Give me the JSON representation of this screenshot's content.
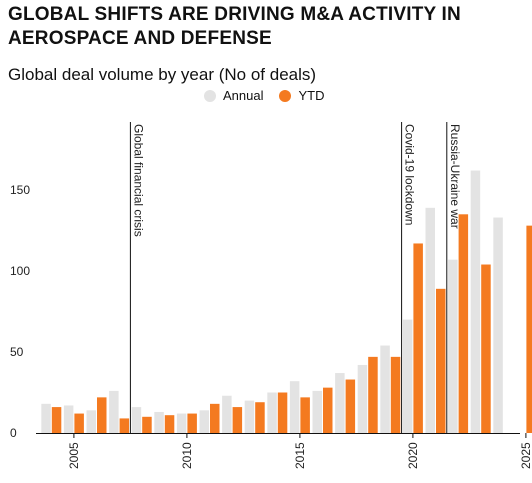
{
  "header": {
    "title_line1": "GLOBAL SHIFTS ARE DRIVING M&A ACTIVITY IN",
    "title_line2": "AEROSPACE AND DEFENSE",
    "subtitle": "Global deal volume by year (No of deals)"
  },
  "colors": {
    "annual": "#e3e3e3",
    "ytd": "#f47a20",
    "axis": "#111111"
  },
  "chart_data": {
    "type": "bar",
    "title": "Global deal volume by year (No of deals)",
    "x": [
      2004,
      2005,
      2006,
      2007,
      2008,
      2009,
      2010,
      2011,
      2012,
      2013,
      2014,
      2015,
      2016,
      2017,
      2018,
      2019,
      2020,
      2021,
      2022,
      2023,
      2024,
      2025
    ],
    "series": [
      {
        "name": "Annual",
        "values": [
          18,
          17,
          14,
          26,
          16,
          13,
          12,
          14,
          23,
          20,
          25,
          32,
          26,
          37,
          42,
          54,
          70,
          139,
          107,
          162,
          133,
          null
        ]
      },
      {
        "name": "YTD",
        "values": [
          16,
          12,
          22,
          9,
          10,
          11,
          12,
          18,
          16,
          19,
          25,
          22,
          28,
          33,
          47,
          47,
          117,
          89,
          135,
          104,
          null,
          128
        ]
      }
    ],
    "ylim": [
      0,
      185
    ],
    "yticks": [
      0,
      50,
      100,
      150
    ],
    "xtick_labels": [
      "2005",
      "2010",
      "2015",
      "2020",
      "2025"
    ],
    "legend": {
      "position": "top-center",
      "entries": [
        "Annual",
        "YTD"
      ]
    },
    "annotations": [
      {
        "label": "Global financial crisis",
        "x": 2007.5
      },
      {
        "label": "Covid-19 lockdown",
        "x": 2019.5
      },
      {
        "label": "Russia-Ukraine war",
        "x": 2021.5
      }
    ]
  }
}
